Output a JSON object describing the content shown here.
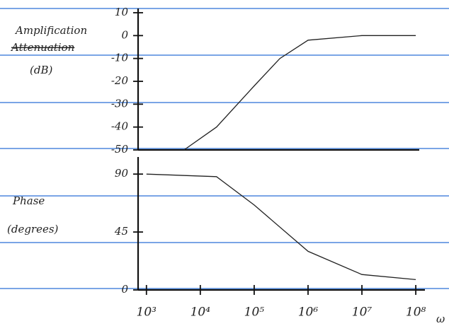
{
  "chart_data": [
    {
      "type": "line",
      "xscale": "log",
      "ylabel": "Amplification",
      "ylabel_crossed_out": "Attenuation",
      "ylabel_unit": "(dB)",
      "x": [
        5000,
        20000,
        100000,
        300000,
        1000000,
        10000000,
        100000000
      ],
      "values": [
        -50,
        -40,
        -22,
        -10,
        -2,
        0,
        0
      ],
      "xlim": [
        700,
        200000000
      ],
      "ylim": [
        -50,
        10
      ],
      "yticks": [
        10,
        0,
        -10,
        -20,
        -30,
        -40,
        -50
      ]
    },
    {
      "type": "line",
      "xscale": "log",
      "ylabel": "Phase",
      "ylabel_unit": "(degrees)",
      "xlabel": "ω",
      "x": [
        1000,
        20000,
        100000,
        1000000,
        10000000,
        100000000
      ],
      "values": [
        90,
        88,
        66,
        30,
        12,
        8
      ],
      "xlim": [
        700,
        200000000
      ],
      "ylim": [
        0,
        100
      ],
      "yticks": [
        90,
        45,
        0
      ],
      "xticks": [
        {
          "value": 1000,
          "label": "10³"
        },
        {
          "value": 10000,
          "label": "10⁴"
        },
        {
          "value": 100000,
          "label": "10⁵"
        },
        {
          "value": 1000000,
          "label": "10⁶"
        },
        {
          "value": 10000000,
          "label": "10⁷"
        },
        {
          "value": 100000000,
          "label": "10⁸"
        }
      ]
    }
  ]
}
